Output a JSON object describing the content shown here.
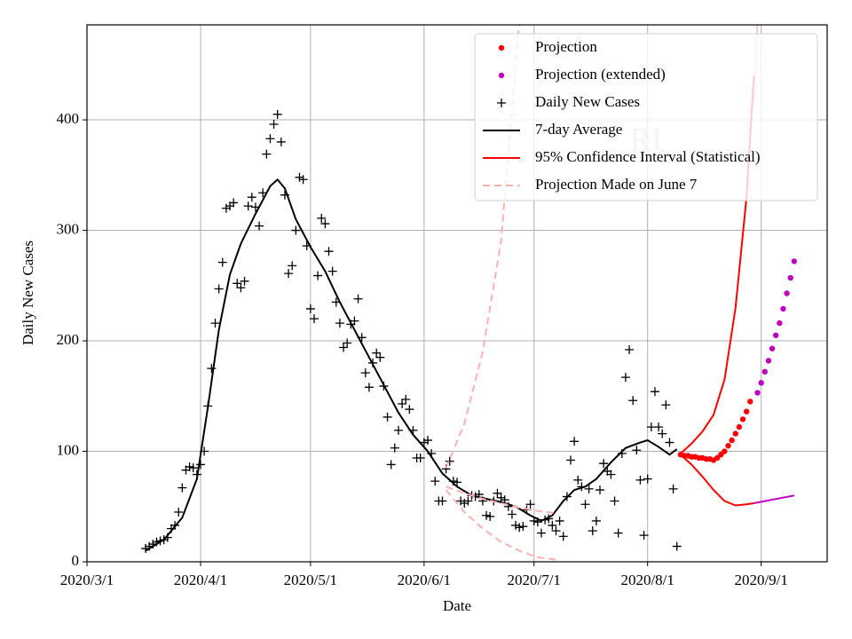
{
  "chart_data": {
    "type": "line",
    "xlabel": "Date",
    "ylabel": "Daily New Cases",
    "annotation": "RI",
    "xlim": [
      "2020/3/1",
      "2020/9/19"
    ],
    "xticks": [
      "2020/3/1",
      "2020/4/1",
      "2020/5/1",
      "2020/6/1",
      "2020/7/1",
      "2020/8/1",
      "2020/9/1"
    ],
    "ylim": [
      0,
      486
    ],
    "yticks": [
      0,
      100,
      200,
      300,
      400
    ],
    "grid": true,
    "legend": "upper right",
    "series": [
      {
        "name": "Projection",
        "marker": "o",
        "color": "#ff0000",
        "x": [
          "2020/8/10",
          "2020/8/11",
          "2020/8/12",
          "2020/8/13",
          "2020/8/14",
          "2020/8/15",
          "2020/8/16",
          "2020/8/17",
          "2020/8/18",
          "2020/8/19",
          "2020/8/20",
          "2020/8/21",
          "2020/8/22",
          "2020/8/23",
          "2020/8/24",
          "2020/8/25",
          "2020/8/26",
          "2020/8/27",
          "2020/8/28",
          "2020/8/29"
        ],
        "values": [
          97,
          96,
          96,
          95,
          95,
          94,
          94,
          93,
          93,
          92,
          94,
          97,
          100,
          105,
          110,
          116,
          122,
          129,
          136,
          145
        ]
      },
      {
        "name": "Projection (extended)",
        "marker": "o",
        "color": "#c000c0",
        "x": [
          "2020/8/31",
          "2020/9/1",
          "2020/9/2",
          "2020/9/3",
          "2020/9/4",
          "2020/9/5",
          "2020/9/6",
          "2020/9/7",
          "2020/9/8",
          "2020/9/9",
          "2020/9/10"
        ],
        "values": [
          153,
          162,
          172,
          182,
          193,
          205,
          216,
          229,
          243,
          257,
          272
        ]
      },
      {
        "name": "Daily New Cases",
        "marker": "+",
        "color": "#000000",
        "x": [
          "2020/3/17",
          "2020/3/18",
          "2020/3/19",
          "2020/3/20",
          "2020/3/21",
          "2020/3/22",
          "2020/3/23",
          "2020/3/24",
          "2020/3/25",
          "2020/3/26",
          "2020/3/27",
          "2020/3/28",
          "2020/3/29",
          "2020/3/30",
          "2020/3/31",
          "2020/4/1",
          "2020/4/2",
          "2020/4/3",
          "2020/4/4",
          "2020/4/5",
          "2020/4/6",
          "2020/4/7",
          "2020/4/8",
          "2020/4/9",
          "2020/4/10",
          "2020/4/11",
          "2020/4/12",
          "2020/4/13",
          "2020/4/14",
          "2020/4/15",
          "2020/4/16",
          "2020/4/17",
          "2020/4/18",
          "2020/4/19",
          "2020/4/20",
          "2020/4/21",
          "2020/4/22",
          "2020/4/23",
          "2020/4/24",
          "2020/4/25",
          "2020/4/26",
          "2020/4/27",
          "2020/4/28",
          "2020/4/29",
          "2020/4/30",
          "2020/5/1",
          "2020/5/2",
          "2020/5/3",
          "2020/5/4",
          "2020/5/5",
          "2020/5/6",
          "2020/5/7",
          "2020/5/8",
          "2020/5/9",
          "2020/5/10",
          "2020/5/11",
          "2020/5/12",
          "2020/5/13",
          "2020/5/14",
          "2020/5/15",
          "2020/5/16",
          "2020/5/17",
          "2020/5/18",
          "2020/5/19",
          "2020/5/20",
          "2020/5/21",
          "2020/5/22",
          "2020/5/23",
          "2020/5/24",
          "2020/5/25",
          "2020/5/26",
          "2020/5/27",
          "2020/5/28",
          "2020/5/29",
          "2020/5/30",
          "2020/5/31",
          "2020/6/1",
          "2020/6/2",
          "2020/6/3",
          "2020/6/4",
          "2020/6/5",
          "2020/6/6",
          "2020/6/7",
          "2020/6/8",
          "2020/6/9",
          "2020/6/10",
          "2020/6/11",
          "2020/6/12",
          "2020/6/13",
          "2020/6/14",
          "2020/6/15",
          "2020/6/16",
          "2020/6/17",
          "2020/6/18",
          "2020/6/19",
          "2020/6/20",
          "2020/6/21",
          "2020/6/22",
          "2020/6/23",
          "2020/6/24",
          "2020/6/25",
          "2020/6/26",
          "2020/6/27",
          "2020/6/28",
          "2020/6/29",
          "2020/6/30",
          "2020/7/1",
          "2020/7/2",
          "2020/7/3",
          "2020/7/4",
          "2020/7/5",
          "2020/7/6",
          "2020/7/7",
          "2020/7/8",
          "2020/7/9",
          "2020/7/10",
          "2020/7/11",
          "2020/7/12",
          "2020/7/13",
          "2020/7/14",
          "2020/7/15",
          "2020/7/16",
          "2020/7/17",
          "2020/7/18",
          "2020/7/19",
          "2020/7/20",
          "2020/7/21",
          "2020/7/22",
          "2020/7/23",
          "2020/7/24",
          "2020/7/25",
          "2020/7/26",
          "2020/7/27",
          "2020/7/28",
          "2020/7/29",
          "2020/7/30",
          "2020/7/31",
          "2020/8/1",
          "2020/8/2",
          "2020/8/3",
          "2020/8/4",
          "2020/8/5",
          "2020/8/6",
          "2020/8/7",
          "2020/8/8",
          "2020/8/9"
        ],
        "values": [
          12,
          14,
          16,
          18,
          19,
          20,
          22,
          30,
          33,
          45,
          67,
          83,
          86,
          85,
          79,
          88,
          100,
          141,
          175,
          216,
          247,
          271,
          320,
          322,
          325,
          252,
          248,
          254,
          322,
          330,
          321,
          304,
          334,
          369,
          383,
          396,
          405,
          380,
          332,
          261,
          268,
          300,
          348,
          346,
          286,
          229,
          220,
          259,
          311,
          306,
          281,
          263,
          235,
          216,
          194,
          198,
          215,
          218,
          238,
          203,
          171,
          158,
          180,
          189,
          185,
          159,
          131,
          88,
          103,
          119,
          143,
          147,
          138,
          119,
          94,
          94,
          108,
          110,
          98,
          73,
          55,
          55,
          84,
          91,
          73,
          72,
          55,
          53,
          55,
          60,
          59,
          61,
          55,
          42,
          41,
          55,
          62,
          58,
          56,
          50,
          43,
          33,
          31,
          32,
          47,
          52,
          37,
          36,
          26,
          38,
          39,
          33,
          28,
          37,
          23,
          59,
          92,
          109,
          74,
          68,
          52,
          66,
          28,
          37,
          65,
          89,
          82,
          79,
          55,
          26,
          98,
          167,
          192,
          146,
          101,
          74,
          24,
          75,
          122,
          154,
          122,
          116,
          142,
          108,
          66,
          14
        ]
      },
      {
        "name": "7-day Average",
        "marker": "-",
        "color": "#000000",
        "x": [
          "2020/3/17",
          "2020/3/22",
          "2020/3/27",
          "2020/3/31",
          "2020/4/3",
          "2020/4/6",
          "2020/4/9",
          "2020/4/12",
          "2020/4/16",
          "2020/4/20",
          "2020/4/22",
          "2020/4/24",
          "2020/4/27",
          "2020/5/1",
          "2020/5/5",
          "2020/5/9",
          "2020/5/13",
          "2020/5/17",
          "2020/5/21",
          "2020/5/25",
          "2020/5/29",
          "2020/6/2",
          "2020/6/6",
          "2020/6/10",
          "2020/6/14",
          "2020/6/18",
          "2020/6/22",
          "2020/6/26",
          "2020/6/30",
          "2020/7/3",
          "2020/7/6",
          "2020/7/9",
          "2020/7/12",
          "2020/7/15",
          "2020/7/18",
          "2020/7/22",
          "2020/7/26",
          "2020/7/30",
          "2020/8/1",
          "2020/8/4",
          "2020/8/7",
          "2020/8/9"
        ],
        "values": [
          10,
          20,
          40,
          75,
          140,
          210,
          260,
          288,
          315,
          340,
          346,
          338,
          310,
          285,
          263,
          235,
          210,
          185,
          160,
          135,
          115,
          100,
          80,
          68,
          60,
          57,
          54,
          50,
          42,
          37,
          42,
          55,
          65,
          68,
          75,
          90,
          103,
          108,
          110,
          104,
          97,
          102
        ]
      },
      {
        "name": "95% Confidence Interval (Statistical)",
        "marker": "-",
        "color": "#ff0000",
        "x": [
          "2020/8/10",
          "2020/8/13",
          "2020/8/16",
          "2020/8/19",
          "2020/8/22",
          "2020/8/25",
          "2020/8/28",
          "2020/8/30"
        ],
        "upper": [
          98,
          107,
          118,
          133,
          165,
          230,
          330,
          440
        ],
        "lower": [
          97,
          88,
          77,
          65,
          55,
          51,
          52,
          53
        ]
      },
      {
        "name": "Projection Made on June 7",
        "marker": "--",
        "color": "#ffb0b0",
        "x": [
          "2020/6/7",
          "2020/6/12",
          "2020/6/17",
          "2020/6/22",
          "2020/6/27",
          "2020/7/2",
          "2020/7/7"
        ],
        "values": [
          68,
          62,
          57,
          53,
          49,
          46,
          44
        ],
        "upper": [
          85,
          125,
          190,
          290,
          490,
          null,
          null
        ],
        "lower": [
          65,
          45,
          30,
          18,
          10,
          4,
          2
        ]
      }
    ],
    "extended_interval": {
      "color": "#c000c0",
      "upper_color": "#f2c2f2",
      "x": [
        "2020/8/30",
        "2020/9/10"
      ],
      "lower": [
        53,
        60
      ],
      "upper_x": [
        "2020/8/30",
        "2020/8/31"
      ],
      "upper": [
        412,
        490
      ]
    }
  }
}
